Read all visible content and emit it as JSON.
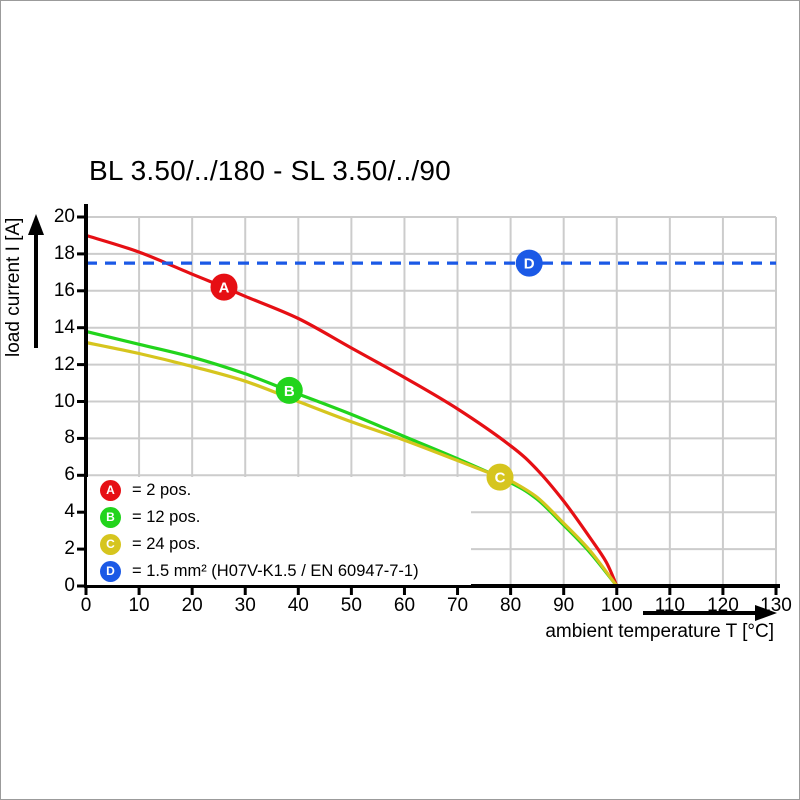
{
  "chart_data": {
    "type": "line",
    "title": "BL 3.50/../180 - SL 3.50/../90",
    "xlabel": "ambient temperature T [°C]",
    "ylabel": "load current I [A]",
    "xlim": [
      0,
      130
    ],
    "ylim": [
      0,
      20
    ],
    "x_tick_step": 10,
    "y_tick_step": 2,
    "grid": true,
    "grid_color": "#cccccc",
    "axis_color": "#000000",
    "legend_position": "lower-left",
    "series": [
      {
        "key": "A",
        "name": "2 pos.",
        "color": "#e60f14",
        "style": "solid",
        "points": [
          [
            0,
            19.0
          ],
          [
            10,
            18.1
          ],
          [
            20,
            16.9
          ],
          [
            26,
            16.2
          ],
          [
            30,
            15.7
          ],
          [
            40,
            14.5
          ],
          [
            50,
            12.9
          ],
          [
            60,
            11.3
          ],
          [
            70,
            9.6
          ],
          [
            80,
            7.6
          ],
          [
            85,
            6.3
          ],
          [
            90,
            4.6
          ],
          [
            95,
            2.6
          ],
          [
            98,
            1.3
          ],
          [
            100,
            0
          ]
        ]
      },
      {
        "key": "B",
        "name": "12 pos.",
        "color": "#22d41c",
        "style": "solid",
        "points": [
          [
            0,
            13.8
          ],
          [
            10,
            13.1
          ],
          [
            20,
            12.4
          ],
          [
            30,
            11.5
          ],
          [
            38,
            10.6
          ],
          [
            40,
            10.4
          ],
          [
            50,
            9.3
          ],
          [
            60,
            8.1
          ],
          [
            70,
            6.9
          ],
          [
            80,
            5.6
          ],
          [
            85,
            4.7
          ],
          [
            90,
            3.3
          ],
          [
            95,
            1.8
          ],
          [
            100,
            0
          ]
        ]
      },
      {
        "key": "C",
        "name": "24 pos.",
        "color": "#d6c51e",
        "style": "solid",
        "points": [
          [
            0,
            13.2
          ],
          [
            10,
            12.6
          ],
          [
            20,
            11.9
          ],
          [
            30,
            11.1
          ],
          [
            40,
            10.0
          ],
          [
            50,
            8.9
          ],
          [
            60,
            7.9
          ],
          [
            70,
            6.8
          ],
          [
            78,
            5.9
          ],
          [
            80,
            5.7
          ],
          [
            85,
            4.8
          ],
          [
            90,
            3.4
          ],
          [
            95,
            1.9
          ],
          [
            100,
            0
          ]
        ]
      },
      {
        "key": "D",
        "name": "1.5 mm² (H07V-K1.5 / EN 60947-7-1)",
        "color": "#1b59e6",
        "style": "dashed",
        "points": [
          [
            0,
            17.5
          ],
          [
            130,
            17.5
          ]
        ]
      }
    ],
    "markers": [
      {
        "key": "A",
        "x": 26,
        "y": 16.2
      },
      {
        "key": "B",
        "x": 38.3,
        "y": 10.6
      },
      {
        "key": "C",
        "x": 78,
        "y": 5.9
      },
      {
        "key": "D",
        "x": 83.5,
        "y": 17.5
      }
    ]
  },
  "legend": {
    "items": [
      {
        "key": "A",
        "text": "= 2 pos."
      },
      {
        "key": "B",
        "text": "= 12 pos."
      },
      {
        "key": "C",
        "text": "= 24 pos."
      },
      {
        "key": "D",
        "text": "= 1.5 mm² (H07V-K1.5 / EN 60947-7-1)"
      }
    ]
  }
}
